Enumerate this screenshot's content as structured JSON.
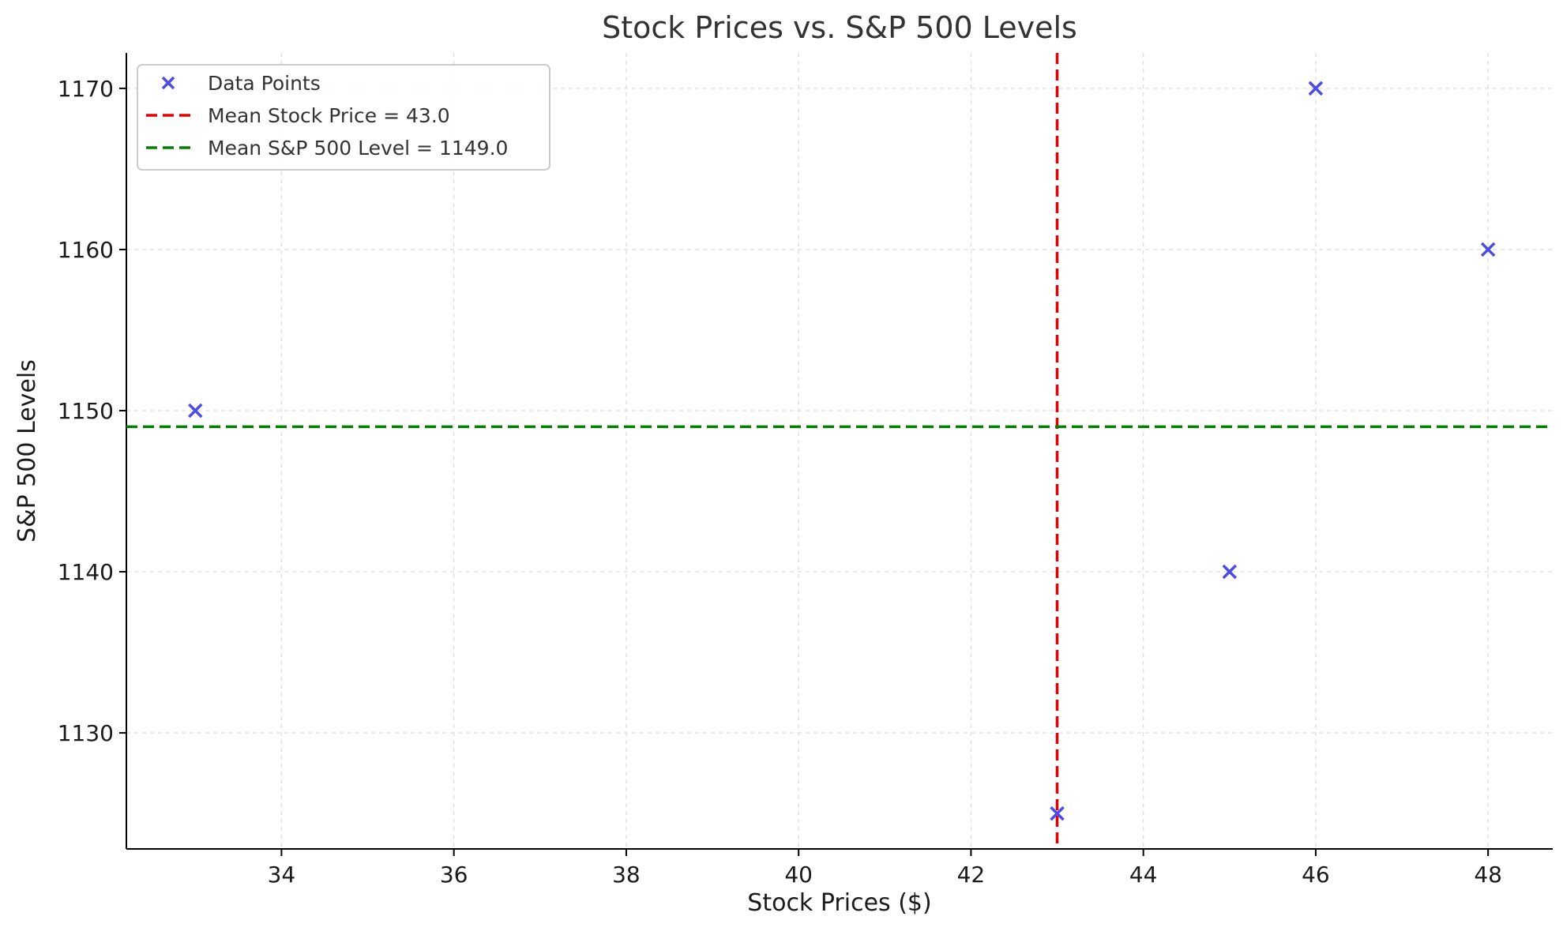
{
  "chart_data": {
    "type": "scatter",
    "title": "Stock Prices vs. S&P 500 Levels",
    "xlabel": "Stock Prices ($)",
    "ylabel": "S&P 500 Levels",
    "xlim": [
      32.2,
      48.75
    ],
    "ylim": [
      1122.8,
      1172.2
    ],
    "x_ticks": [
      34,
      36,
      38,
      40,
      42,
      44,
      46,
      48
    ],
    "y_ticks": [
      1130,
      1140,
      1150,
      1160,
      1170
    ],
    "grid": true,
    "legend_position": "top-left",
    "series": [
      {
        "name": "Data Points",
        "marker": "x",
        "color": "#4b4be6",
        "points": [
          {
            "x": 33,
            "y": 1150
          },
          {
            "x": 43,
            "y": 1125
          },
          {
            "x": 45,
            "y": 1140
          },
          {
            "x": 46,
            "y": 1170
          },
          {
            "x": 48,
            "y": 1160
          }
        ]
      }
    ],
    "reference_lines": [
      {
        "name": "Mean Stock Price = 43.0",
        "orientation": "vertical",
        "value": 43.0,
        "color": "#e60000",
        "style": "dashed"
      },
      {
        "name": "Mean S&P 500 Level = 1149.0",
        "orientation": "horizontal",
        "value": 1149.0,
        "color": "#008000",
        "style": "dashed"
      }
    ]
  }
}
